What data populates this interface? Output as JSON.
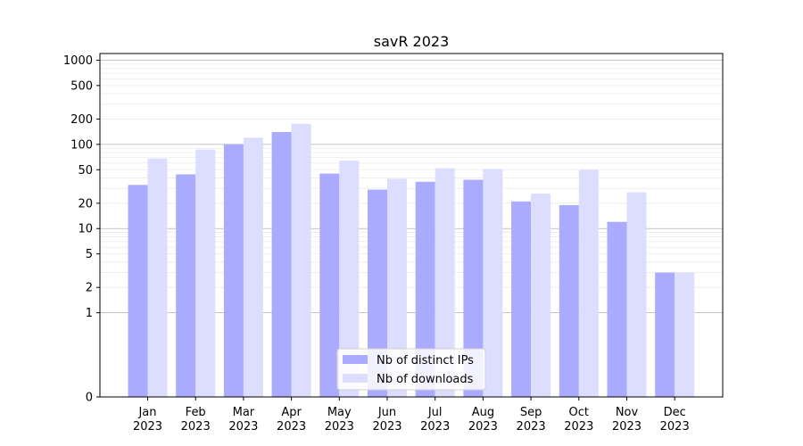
{
  "chart_data": {
    "type": "bar",
    "title": "savR 2023",
    "xlabel": "",
    "ylabel": "",
    "yscale": "symlog",
    "ylim": [
      0,
      1200
    ],
    "yticks": [
      "0",
      "1",
      "2",
      "5",
      "10",
      "20",
      "50",
      "100",
      "200",
      "500",
      "1000"
    ],
    "ytick_values": [
      0,
      1,
      2,
      5,
      10,
      20,
      50,
      100,
      200,
      500,
      1000
    ],
    "grid": true,
    "legend": "bottom-center",
    "categories": [
      {
        "month": "Jan",
        "year": "2023"
      },
      {
        "month": "Feb",
        "year": "2023"
      },
      {
        "month": "Mar",
        "year": "2023"
      },
      {
        "month": "Apr",
        "year": "2023"
      },
      {
        "month": "May",
        "year": "2023"
      },
      {
        "month": "Jun",
        "year": "2023"
      },
      {
        "month": "Jul",
        "year": "2023"
      },
      {
        "month": "Aug",
        "year": "2023"
      },
      {
        "month": "Sep",
        "year": "2023"
      },
      {
        "month": "Oct",
        "year": "2023"
      },
      {
        "month": "Nov",
        "year": "2023"
      },
      {
        "month": "Dec",
        "year": "2023"
      }
    ],
    "series": [
      {
        "name": "Nb of distinct IPs",
        "color": "#aaaaff",
        "values": [
          33,
          44,
          100,
          140,
          45,
          29,
          36,
          38,
          21,
          19,
          12,
          3
        ]
      },
      {
        "name": "Nb of downloads",
        "color": "#ddddff",
        "values": [
          68,
          87,
          120,
          175,
          64,
          39,
          52,
          51,
          26,
          50,
          27,
          3
        ]
      }
    ]
  }
}
